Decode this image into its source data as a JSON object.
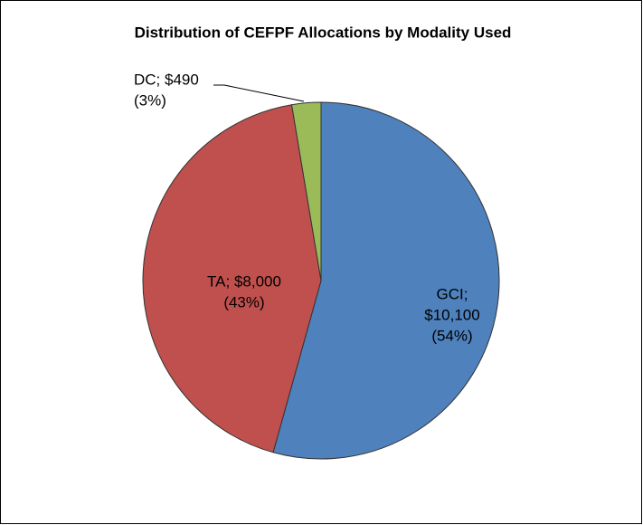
{
  "chart_data": {
    "type": "pie",
    "title": "Distribution of CEFPF Allocations  by Modality Used",
    "values": [
      10100,
      8000,
      490
    ],
    "value_labels": [
      [
        "GCI;",
        "$10,100",
        "(54%)"
      ],
      [
        "TA; $8,000",
        "(43%)"
      ],
      [
        "DC; $490",
        "(3%)"
      ]
    ],
    "colors": [
      "#4f81bd",
      "#c0504d",
      "#9bbb59"
    ],
    "start_angle": 0,
    "direction": "clockwise"
  }
}
